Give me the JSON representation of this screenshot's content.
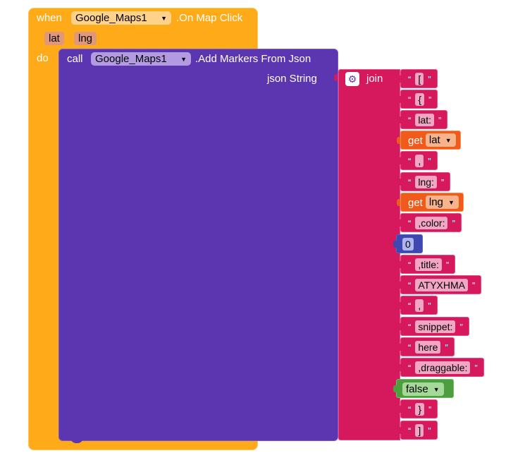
{
  "event_block": {
    "when_label": "when",
    "component": "Google_Maps1",
    "event_name": ".On Map Click",
    "params": [
      "lat",
      "lng"
    ],
    "do_label": "do"
  },
  "call_block": {
    "call_label": "call",
    "component": "Google_Maps1",
    "method": ".Add Markers From Json",
    "socket_label": "json String"
  },
  "join_block": {
    "label": "join",
    "items": [
      {
        "kind": "text",
        "value": "["
      },
      {
        "kind": "text",
        "value": "{"
      },
      {
        "kind": "text",
        "value": "lat:"
      },
      {
        "kind": "get",
        "get_label": "get",
        "var": "lat"
      },
      {
        "kind": "text",
        "value": ","
      },
      {
        "kind": "text",
        "value": "lng:"
      },
      {
        "kind": "get",
        "get_label": "get",
        "var": "lng"
      },
      {
        "kind": "text",
        "value": ",color:"
      },
      {
        "kind": "number",
        "value": "0"
      },
      {
        "kind": "text",
        "value": ",title:"
      },
      {
        "kind": "text",
        "value": "ATYXHMA"
      },
      {
        "kind": "text",
        "value": ","
      },
      {
        "kind": "text",
        "value": "snippet:"
      },
      {
        "kind": "text",
        "value": "here"
      },
      {
        "kind": "text",
        "value": ",draggable:"
      },
      {
        "kind": "bool",
        "value": "false"
      },
      {
        "kind": "text",
        "value": "}"
      },
      {
        "kind": "text",
        "value": "]"
      }
    ]
  },
  "colors": {
    "event": "#ffab19",
    "call": "#5c35b0",
    "text": "#d6195c",
    "variable": "#f05b1c",
    "math": "#3f48b0",
    "logic": "#4c9e3f"
  }
}
